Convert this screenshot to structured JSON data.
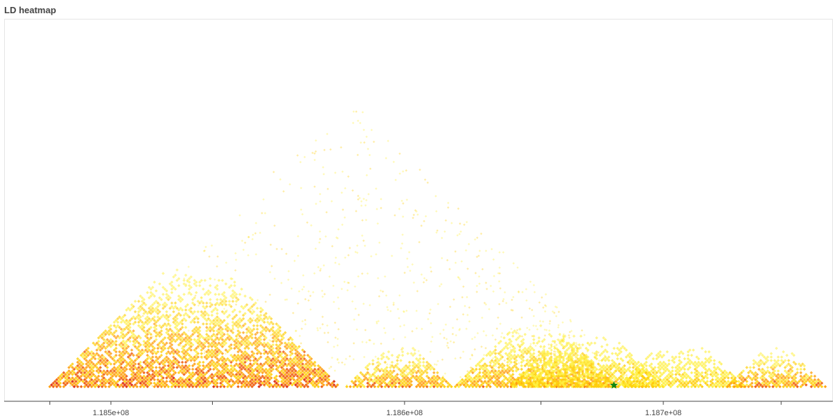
{
  "chart_data": {
    "type": "heatmap",
    "title": "LD heatmap",
    "xlabel": "",
    "ylabel": "",
    "x_range": [
      118464000,
      118740000
    ],
    "x_ticks": [
      118470000,
      118490000,
      118520000,
      118575000,
      118600000,
      118625000,
      118650000
    ],
    "x_tick_labels": [
      {
        "value": 118490000,
        "label": "1.185e+08"
      },
      {
        "value": 118600000,
        "label": "1.186e+08"
      },
      {
        "value": 118700000,
        "label": "1.187e+08"
      }
    ],
    "x_minor_ticks": [
      118467000,
      118524000,
      118651000,
      118733000
    ],
    "colormap": [
      "#ffffff",
      "#ffee33",
      "#ffcc00",
      "#ff9900",
      "#ee5500",
      "#dd2200"
    ],
    "ld_blocks": [
      {
        "start": 118467000,
        "end": 118575000,
        "peak_r2": 0.9
      },
      {
        "start": 118577000,
        "end": 118612000,
        "peak_r2": 0.75
      },
      {
        "start": 118613000,
        "end": 118682000,
        "peak_r2": 0.7
      },
      {
        "start": 118630000,
        "end": 118700000,
        "peak_r2": 0.55
      },
      {
        "start": 118682000,
        "end": 118723000,
        "peak_r2": 0.5
      },
      {
        "start": 118718000,
        "end": 118748000,
        "peak_r2": 0.8
      }
    ],
    "lead_snp": {
      "position": 118690000,
      "marker": "star",
      "color": "#118811"
    }
  }
}
